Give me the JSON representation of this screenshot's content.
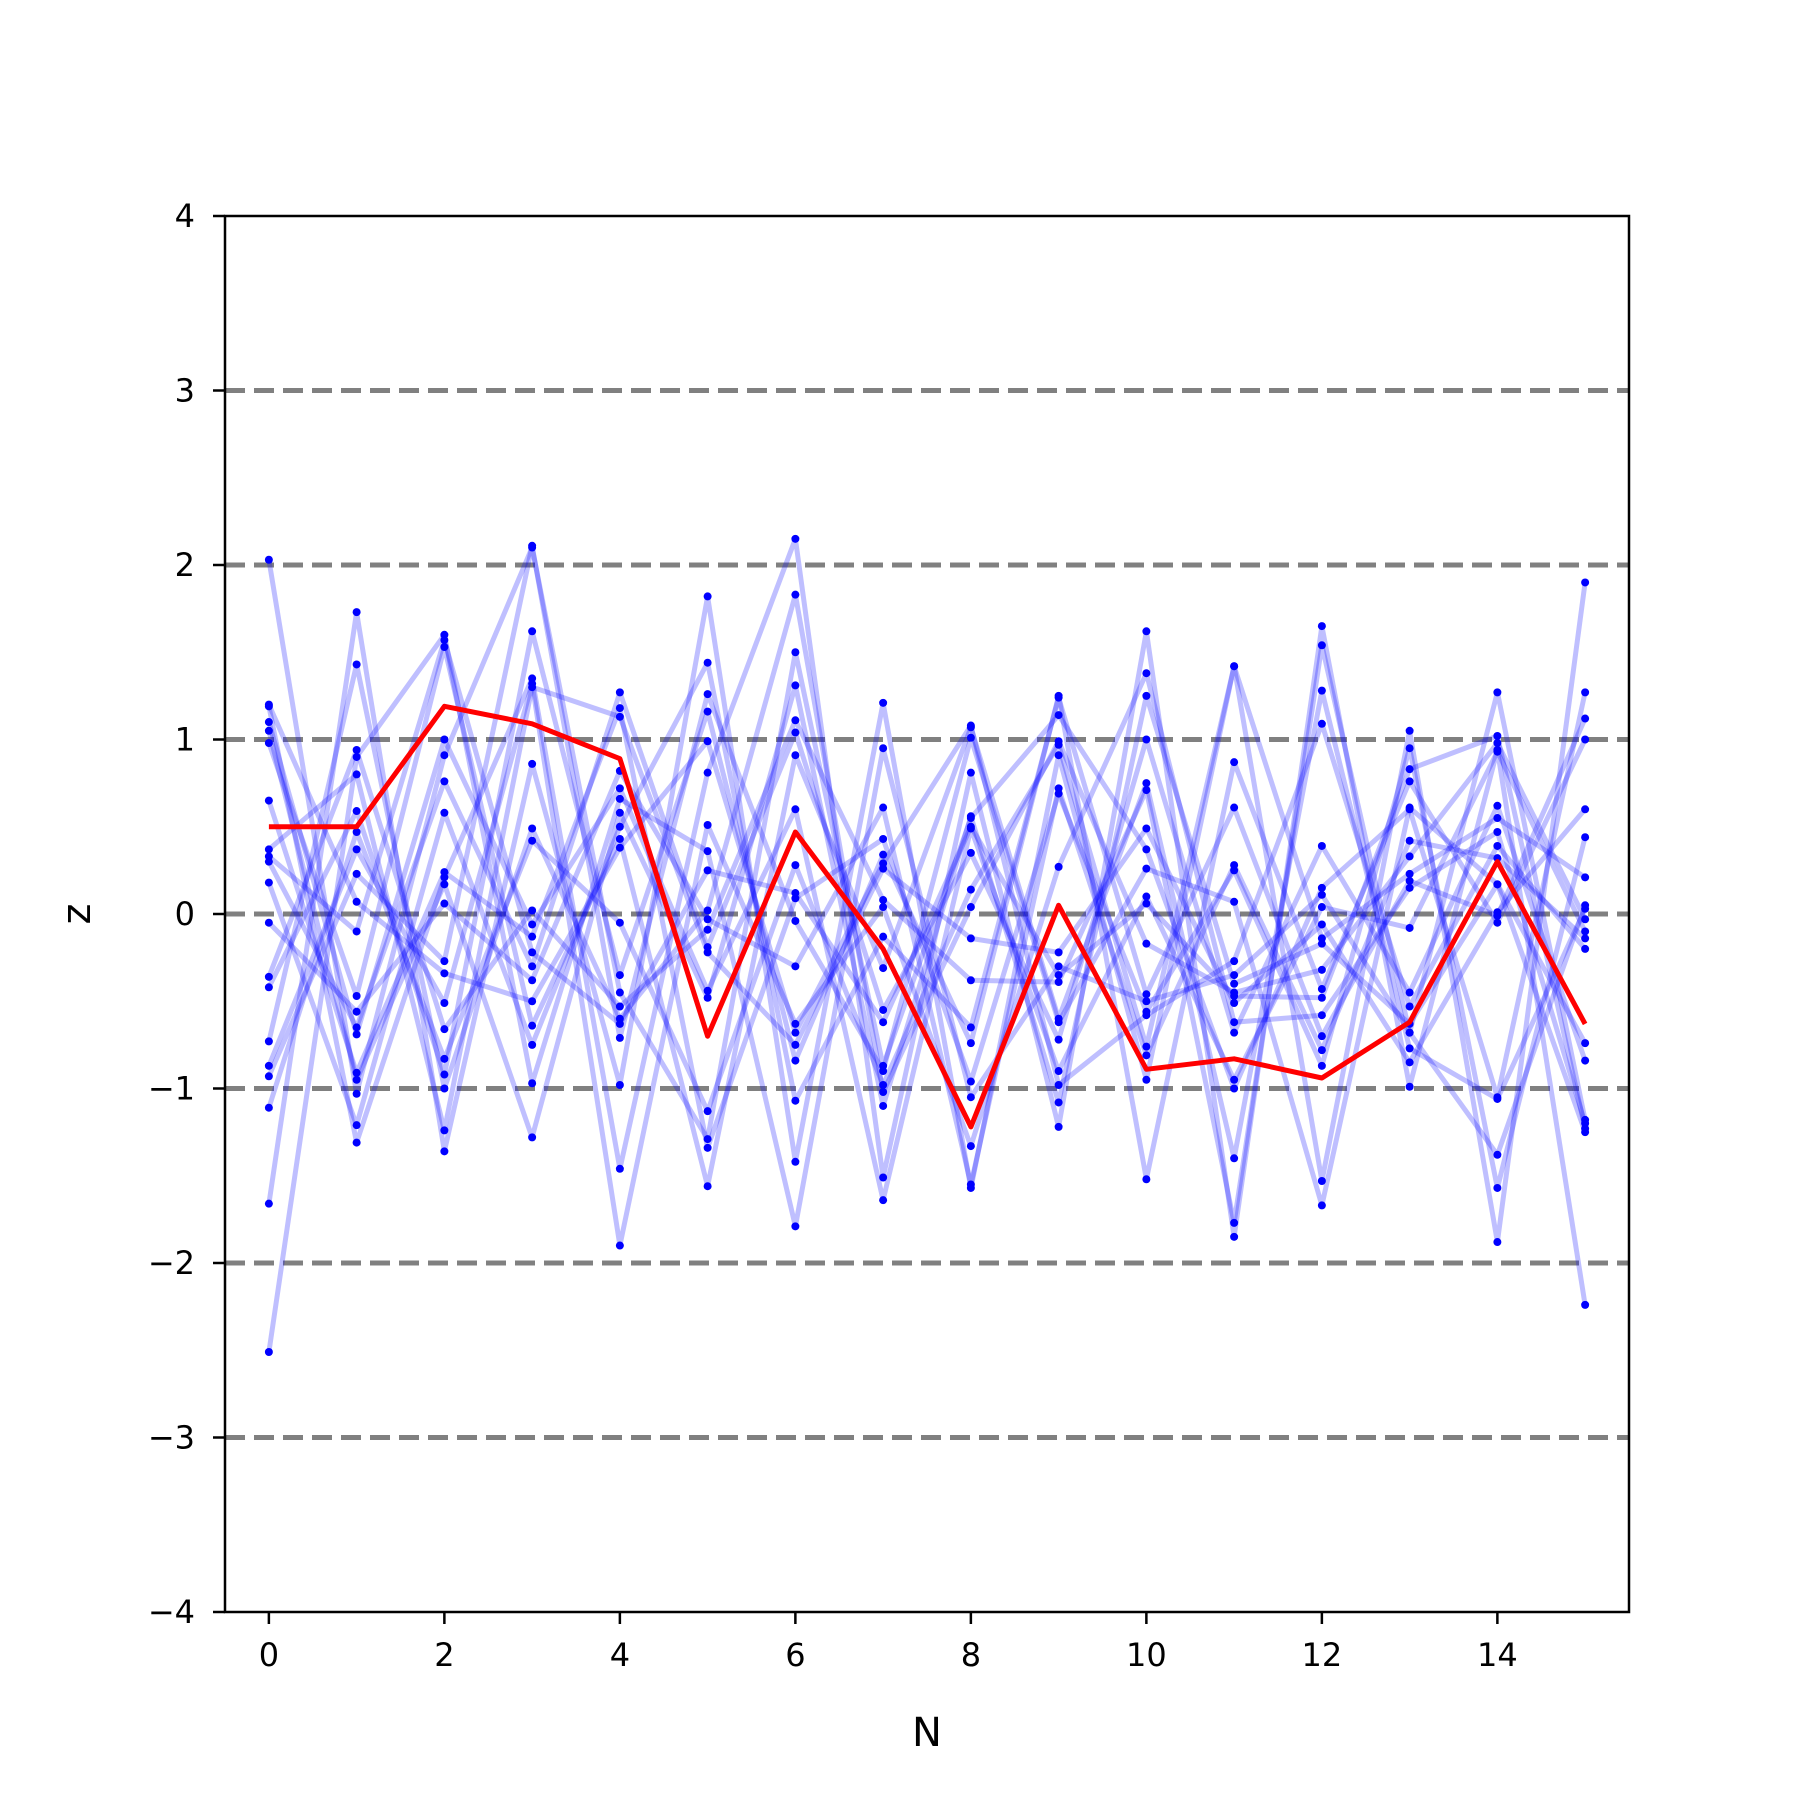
{
  "chart_data": {
    "type": "line",
    "xlabel": "N",
    "ylabel": "z",
    "xlim": [
      -0.5,
      15.5
    ],
    "ylim": [
      -4,
      4
    ],
    "x": [
      0,
      1,
      2,
      3,
      4,
      5,
      6,
      7,
      8,
      9,
      10,
      11,
      12,
      13,
      14,
      15
    ],
    "xticks": [
      0,
      2,
      4,
      6,
      8,
      10,
      12,
      14
    ],
    "xtick_labels": [
      "0",
      "2",
      "4",
      "6",
      "8",
      "10",
      "12",
      "14"
    ],
    "yticks": [
      -4,
      -3,
      -2,
      -1,
      0,
      1,
      2,
      3,
      4
    ],
    "ytick_labels": [
      "−4",
      "−3",
      "−2",
      "−1",
      "0",
      "1",
      "2",
      "3",
      "4"
    ],
    "reference_lines": [
      -3,
      -2,
      -1,
      0,
      1,
      2,
      3
    ],
    "colors": {
      "samples": "#0000ff",
      "highlight": "#ff0000",
      "reference": "#808080"
    },
    "highlight_series": {
      "values": [
        0.5,
        0.5,
        1.19,
        1.09,
        0.89,
        -0.7,
        0.47,
        -0.2,
        -1.22,
        0.05,
        -0.89,
        -0.83,
        -0.94,
        -0.62,
        0.3,
        -0.63
      ]
    },
    "sample_series": [
      {
        "values": [
          2.03,
          -1.03,
          0.91,
          2.1,
          -0.45,
          -1.29,
          1.5,
          -0.87,
          0.55,
          1.14,
          0.37,
          -1.0,
          0.15,
          0.6,
          -1.05,
          1.27
        ]
      },
      {
        "values": [
          -2.51,
          0.9,
          1.6,
          -0.97,
          0.66,
          0.36,
          -1.79,
          0.95,
          -1.05,
          -0.3,
          -0.5,
          -0.35,
          0.11,
          -0.68,
          1.27,
          -1.18
        ]
      },
      {
        "values": [
          1.19,
          -1.31,
          0.21,
          1.35,
          -1.46,
          0.81,
          2.15,
          -1.51,
          0.81,
          -1.22,
          1.62,
          -1.85,
          1.65,
          -0.99,
          0.94,
          -2.24
        ]
      },
      {
        "values": [
          -1.66,
          1.73,
          -1.36,
          0.86,
          -0.98,
          1.82,
          -1.42,
          1.21,
          -1.57,
          0.91,
          -0.95,
          1.42,
          -1.53,
          1.05,
          -1.88,
          1.9
        ]
      },
      {
        "values": [
          0.3,
          -0.65,
          0.76,
          -0.3,
          1.27,
          -0.19,
          1.04,
          -0.55,
          0.35,
          -0.72,
          1.0,
          -0.68,
          0.39,
          -0.45,
          0.62,
          -0.84
        ]
      },
      {
        "values": [
          -0.42,
          0.59,
          -0.92,
          1.62,
          -0.35,
          1.16,
          -0.84,
          0.34,
          -0.74,
          1.25,
          -1.52,
          0.87,
          -0.43,
          0.76,
          -0.05,
          1.0
        ]
      },
      {
        "values": [
          0.98,
          -0.47,
          1.53,
          -0.64,
          0.43,
          -1.56,
          0.91,
          -0.31,
          1.07,
          -0.6,
          0.75,
          -1.4,
          1.28,
          -0.77,
          -1.06,
          0.03
        ]
      },
      {
        "values": [
          -0.73,
          1.43,
          -1.0,
          0.49,
          -0.6,
          0.02,
          1.83,
          -1.02,
          0.04,
          0.99,
          -0.17,
          -0.45,
          -0.32,
          0.33,
          0.98,
          -0.03
        ]
      },
      {
        "values": [
          0.65,
          -0.91,
          0.24,
          -0.13,
          1.18,
          -1.34,
          0.09,
          0.43,
          -0.96,
          0.69,
          -0.56,
          0.25,
          -0.87,
          0.95,
          -1.57,
          0.44
        ]
      },
      {
        "values": [
          -0.87,
          0.37,
          -0.51,
          1.32,
          -1.9,
          0.51,
          -0.63,
          0.04,
          -1.33,
          0.27,
          1.38,
          -0.62,
          -0.58,
          0.15,
          0.47,
          -1.2
        ]
      },
      {
        "values": [
          1.1,
          -0.69,
          1.0,
          -0.06,
          0.72,
          -0.44,
          0.6,
          -1.64,
          0.49,
          -0.9,
          0.1,
          -0.95,
          0.04,
          -0.08,
          0.93,
          -0.1
        ]
      },
      {
        "values": [
          0.18,
          -1.21,
          0.58,
          -0.75,
          0.5,
          1.44,
          -1.07,
          -0.13,
          -0.65,
          1.24,
          -0.46,
          0.61,
          -0.7,
          0.19,
          -0.01,
          1.12
        ]
      },
      {
        "values": [
          -0.93,
          0.23,
          -0.27,
          2.11,
          -0.71,
          1.26,
          -0.04,
          -0.9,
          1.01,
          -0.62,
          0.26,
          0.07,
          -1.67,
          0.61,
          0.17,
          -0.74
        ]
      },
      {
        "values": [
          0.37,
          0.8,
          -1.24,
          1.3,
          1.13,
          -0.22,
          -0.75,
          0.26,
          -0.14,
          -0.22,
          0.49,
          -0.51,
          -0.06,
          -0.85,
          0.01,
          0.6
        ]
      },
      {
        "values": [
          -0.05,
          -0.56,
          0.06,
          -0.38,
          0.82,
          -0.03,
          -0.3,
          0.61,
          -1.55,
          0.72,
          -0.81,
          0.28,
          -0.78,
          0.42,
          0.32,
          -0.14
        ]
      },
      {
        "values": [
          1.05,
          -0.95,
          0.17,
          -1.28,
          0.58,
          -0.48,
          1.31,
          -1.1,
          0.56,
          -1.08,
          1.25,
          -0.4,
          -0.17,
          -0.63,
          0.17,
          -1.25
        ]
      },
      {
        "values": [
          -0.36,
          0.94,
          -0.66,
          0.02,
          -0.53,
          -0.09,
          1.11,
          0.08,
          -0.38,
          -0.39,
          0.71,
          -1.77,
          1.54,
          -0.68,
          -1.38,
          0.05
        ]
      },
      {
        "values": [
          1.2,
          0.07,
          -0.34,
          -0.5,
          0.38,
          0.99,
          -0.68,
          0.29,
          1.08,
          -0.98,
          -0.58,
          -0.27,
          1.09,
          -0.53,
          0.39,
          -0.2
        ]
      },
      {
        "values": [
          -1.11,
          0.47,
          -0.83,
          0.42,
          -0.05,
          -1.13,
          0.28,
          -0.98,
          0.14,
          0.97,
          -0.76,
          1.42,
          -0.14,
          0.23,
          0.55,
          0.21
        ]
      },
      {
        "values": [
          0.33,
          -0.1,
          1.57,
          -0.22,
          -0.63,
          0.25,
          0.12,
          -0.62,
          0.5,
          -0.35,
          0.06,
          -0.47,
          -0.48,
          0.83,
          1.02,
          -1.23
        ]
      }
    ]
  }
}
